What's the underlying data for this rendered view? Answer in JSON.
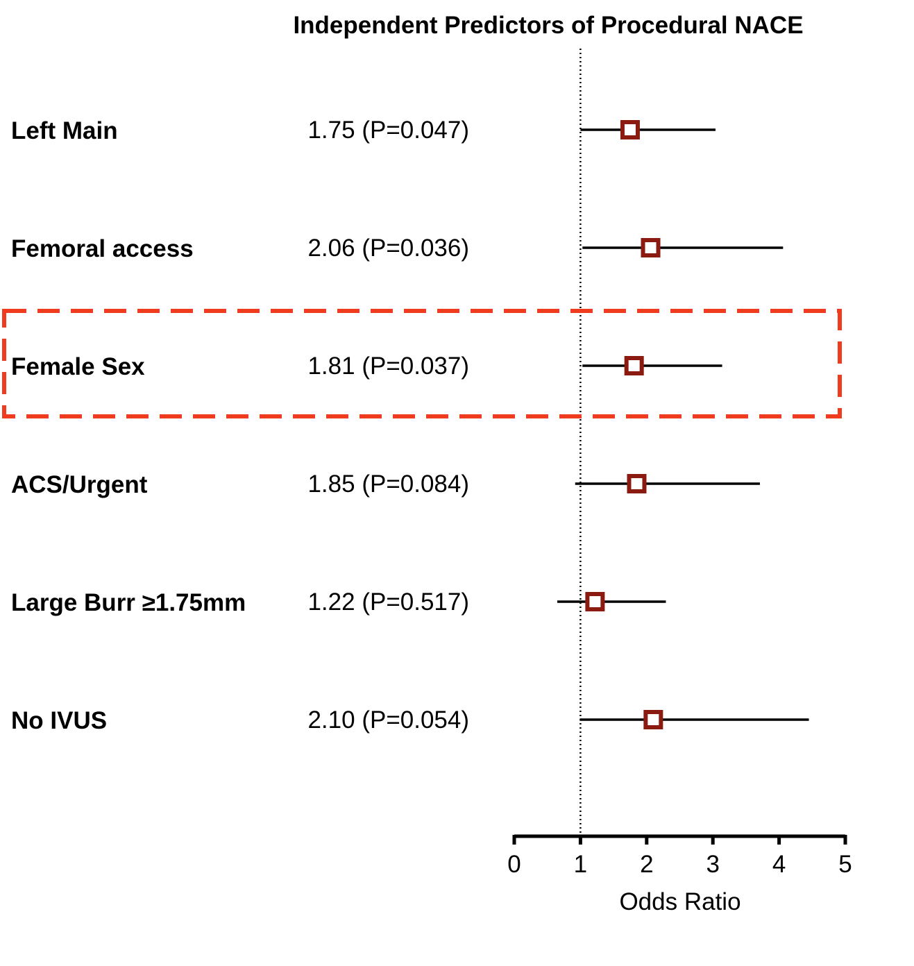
{
  "chart_data": {
    "type": "forest",
    "title": "Independent Predictors of Procedural NACE",
    "xlabel": "Odds Ratio",
    "xlim": [
      0,
      5
    ],
    "xticks": [
      0,
      1,
      2,
      3,
      4,
      5
    ],
    "reference_line": 1,
    "highlight_row": 2,
    "colors": {
      "marker": "#8b1a10",
      "highlight": "#f03c1e",
      "line": "#000000"
    },
    "rows": [
      {
        "label": "Left Main",
        "estimate_text": "1.75 (P=0.047)",
        "or": 1.75,
        "ci_low": 1.0,
        "ci_high": 3.04
      },
      {
        "label": "Femoral access",
        "estimate_text": "2.06 (P=0.036)",
        "or": 2.06,
        "ci_low": 1.03,
        "ci_high": 4.06
      },
      {
        "label": "Female Sex",
        "estimate_text": "1.81 (P=0.037)",
        "or": 1.81,
        "ci_low": 1.03,
        "ci_high": 3.14
      },
      {
        "label": "ACS/Urgent",
        "estimate_text": "1.85 (P=0.084)",
        "or": 1.85,
        "ci_low": 0.92,
        "ci_high": 3.71
      },
      {
        "label": "Large Burr ≥1.75mm",
        "estimate_text": "1.22 (P=0.517)",
        "or": 1.22,
        "ci_low": 0.65,
        "ci_high": 2.29
      },
      {
        "label": "No IVUS",
        "estimate_text": "2.10 (P=0.054)",
        "or": 2.1,
        "ci_low": 0.99,
        "ci_high": 4.45
      }
    ]
  }
}
